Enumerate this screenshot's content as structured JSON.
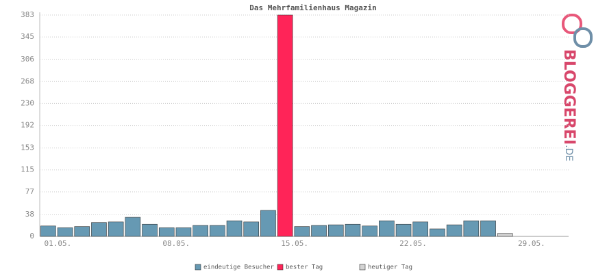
{
  "chart_data": {
    "type": "bar",
    "title": "Das Mehrfamilienhaus Magazin",
    "categories": [
      "01.05.",
      null,
      null,
      null,
      null,
      null,
      null,
      "08.05.",
      null,
      null,
      null,
      null,
      null,
      null,
      "15.05.",
      null,
      null,
      null,
      null,
      null,
      null,
      "22.05.",
      null,
      null,
      null,
      null,
      null,
      null,
      "29.05.",
      null,
      null
    ],
    "series": [
      {
        "name": "eindeutige Besucher",
        "color": "#6699b3",
        "values": [
          18,
          15,
          17,
          24,
          25,
          33,
          21,
          15,
          15,
          19,
          19,
          27,
          25,
          45,
          null,
          17,
          19,
          20,
          21,
          18,
          27,
          21,
          25,
          13,
          20,
          27,
          27,
          null,
          null,
          null,
          null
        ]
      },
      {
        "name": "bester Tag",
        "color": "#ff2458",
        "values": [
          null,
          null,
          null,
          null,
          null,
          null,
          null,
          null,
          null,
          null,
          null,
          null,
          null,
          null,
          383,
          null,
          null,
          null,
          null,
          null,
          null,
          null,
          null,
          null,
          null,
          null,
          null,
          null,
          null,
          null,
          null
        ]
      },
      {
        "name": "heutiger Tag",
        "color": "#d3d3d3",
        "values": [
          null,
          null,
          null,
          null,
          null,
          null,
          null,
          null,
          null,
          null,
          null,
          null,
          null,
          null,
          null,
          null,
          null,
          null,
          null,
          null,
          null,
          null,
          null,
          null,
          null,
          null,
          null,
          5,
          null,
          null,
          null
        ]
      }
    ],
    "ylim": [
      0,
      383
    ],
    "yticks": [
      0,
      38,
      77,
      115,
      153,
      192,
      230,
      268,
      306,
      345,
      383
    ],
    "grid": true
  },
  "logo": {
    "name": "BLOGGEREI",
    "tld": ".DE"
  }
}
